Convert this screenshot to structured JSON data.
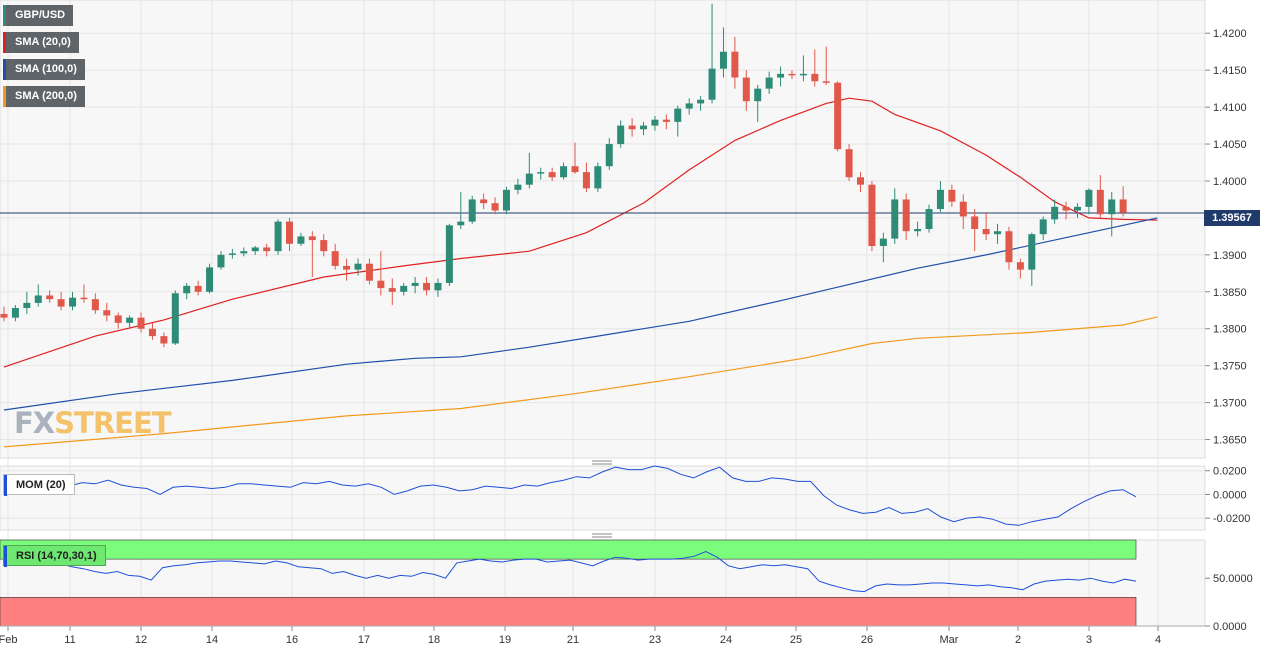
{
  "legend": {
    "symbol": "GBP/USD",
    "sma20": "SMA (20,0)",
    "sma100": "SMA (100,0)",
    "sma200": "SMA (200,0)",
    "mom": "MOM (20)",
    "rsi": "RSI (14,70,30,1)"
  },
  "colors": {
    "up": "#2e8b78",
    "down": "#e0584a",
    "sma20": "#e02020",
    "sma100": "#1f4fa8",
    "sma200": "#f39a1e",
    "indicator": "#1f4fd8",
    "rsi_overbought": "#7cfc7c",
    "rsi_oversold": "#ff8080",
    "last_price_line": "#1f3a6b"
  },
  "last_price": "1.39567",
  "logo": {
    "part1": "FX",
    "part2": "STREET"
  },
  "chart_data": [
    {
      "type": "candlestick",
      "title": "GBP/USD",
      "ylim": [
        1.3625,
        1.4245
      ],
      "y_ticks": [
        "1.4200",
        "1.4150",
        "1.4100",
        "1.4050",
        "1.4000",
        "1.3950",
        "1.3900",
        "1.3850",
        "1.3800",
        "1.3750",
        "1.3700",
        "1.3650"
      ],
      "x_ticks": [
        "Feb",
        "11",
        "12",
        "14",
        "16",
        "17",
        "18",
        "19",
        "21",
        "23",
        "24",
        "25",
        "26",
        "Mar",
        "2",
        "3",
        "4"
      ],
      "candles": [
        [
          1.382,
          1.383,
          1.381,
          1.3815
        ],
        [
          1.3815,
          1.3832,
          1.381,
          1.3828
        ],
        [
          1.3828,
          1.385,
          1.382,
          1.3835
        ],
        [
          1.3835,
          1.386,
          1.383,
          1.3845
        ],
        [
          1.3845,
          1.3852,
          1.3835,
          1.384
        ],
        [
          1.384,
          1.385,
          1.3825,
          1.383
        ],
        [
          1.383,
          1.385,
          1.3825,
          1.3842
        ],
        [
          1.3842,
          1.386,
          1.3835,
          1.384
        ],
        [
          1.384,
          1.3848,
          1.382,
          1.3825
        ],
        [
          1.3825,
          1.3835,
          1.381,
          1.3818
        ],
        [
          1.3818,
          1.3822,
          1.38,
          1.3808
        ],
        [
          1.3808,
          1.3818,
          1.3802,
          1.3815
        ],
        [
          1.3815,
          1.3822,
          1.3795,
          1.38
        ],
        [
          1.38,
          1.3808,
          1.3785,
          1.379
        ],
        [
          1.379,
          1.3795,
          1.3775,
          1.378
        ],
        [
          1.378,
          1.3852,
          1.3778,
          1.3848
        ],
        [
          1.3848,
          1.3862,
          1.384,
          1.3858
        ],
        [
          1.3858,
          1.3865,
          1.3845,
          1.385
        ],
        [
          1.385,
          1.3888,
          1.3848,
          1.3883
        ],
        [
          1.3883,
          1.3905,
          1.388,
          1.39
        ],
        [
          1.39,
          1.3908,
          1.3895,
          1.3902
        ],
        [
          1.3902,
          1.391,
          1.3898,
          1.3905
        ],
        [
          1.3905,
          1.3912,
          1.39,
          1.391
        ],
        [
          1.391,
          1.3915,
          1.3898,
          1.3905
        ],
        [
          1.3905,
          1.3948,
          1.39,
          1.3945
        ],
        [
          1.3945,
          1.395,
          1.3905,
          1.3915
        ],
        [
          1.3915,
          1.393,
          1.3912,
          1.3925
        ],
        [
          1.3925,
          1.3932,
          1.387,
          1.392
        ],
        [
          1.392,
          1.3928,
          1.3898,
          1.3905
        ],
        [
          1.3905,
          1.3915,
          1.388,
          1.3885
        ],
        [
          1.3885,
          1.3895,
          1.3865,
          1.388
        ],
        [
          1.388,
          1.3895,
          1.3872,
          1.3888
        ],
        [
          1.3888,
          1.3895,
          1.386,
          1.3865
        ],
        [
          1.3865,
          1.3905,
          1.3845,
          1.3855
        ],
        [
          1.3855,
          1.3868,
          1.3832,
          1.385
        ],
        [
          1.385,
          1.3862,
          1.3845,
          1.3858
        ],
        [
          1.3858,
          1.387,
          1.3848,
          1.3862
        ],
        [
          1.3862,
          1.387,
          1.3845,
          1.3852
        ],
        [
          1.3852,
          1.3868,
          1.3843,
          1.3862
        ],
        [
          1.3862,
          1.3942,
          1.3858,
          1.394
        ],
        [
          1.394,
          1.3985,
          1.3935,
          1.3945
        ],
        [
          1.3945,
          1.398,
          1.3942,
          1.3975
        ],
        [
          1.3975,
          1.3983,
          1.3962,
          1.397
        ],
        [
          1.397,
          1.3978,
          1.3955,
          1.396
        ],
        [
          1.396,
          1.3992,
          1.3955,
          1.3988
        ],
        [
          1.3988,
          1.4003,
          1.3982,
          1.3995
        ],
        [
          1.3995,
          1.4038,
          1.399,
          1.401
        ],
        [
          1.401,
          1.4018,
          1.4002,
          1.4012
        ],
        [
          1.4012,
          1.4018,
          1.4,
          1.4005
        ],
        [
          1.4005,
          1.4025,
          1.4002,
          1.402
        ],
        [
          1.402,
          1.4052,
          1.401,
          1.4012
        ],
        [
          1.4012,
          1.4025,
          1.3985,
          1.399
        ],
        [
          1.399,
          1.4025,
          1.3985,
          1.402
        ],
        [
          1.402,
          1.4058,
          1.4015,
          1.405
        ],
        [
          1.405,
          1.4082,
          1.4045,
          1.4075
        ],
        [
          1.4075,
          1.4085,
          1.406,
          1.407
        ],
        [
          1.407,
          1.408,
          1.4062,
          1.4075
        ],
        [
          1.4075,
          1.4088,
          1.4068,
          1.4083
        ],
        [
          1.4083,
          1.409,
          1.407,
          1.408
        ],
        [
          1.408,
          1.4102,
          1.406,
          1.4098
        ],
        [
          1.4098,
          1.4112,
          1.409,
          1.4105
        ],
        [
          1.4105,
          1.4115,
          1.4095,
          1.411
        ],
        [
          1.411,
          1.424,
          1.4105,
          1.4152
        ],
        [
          1.4152,
          1.4208,
          1.414,
          1.4175
        ],
        [
          1.4175,
          1.4195,
          1.4125,
          1.414
        ],
        [
          1.414,
          1.415,
          1.4095,
          1.4108
        ],
        [
          1.4108,
          1.413,
          1.408,
          1.4125
        ],
        [
          1.4125,
          1.4148,
          1.4118,
          1.414
        ],
        [
          1.414,
          1.4155,
          1.4128,
          1.4145
        ],
        [
          1.4145,
          1.415,
          1.4138,
          1.4143
        ],
        [
          1.4143,
          1.417,
          1.4135,
          1.4145
        ],
        [
          1.4145,
          1.4178,
          1.4128,
          1.4135
        ],
        [
          1.4135,
          1.4182,
          1.413,
          1.4133
        ],
        [
          1.4133,
          1.4135,
          1.404,
          1.4043
        ],
        [
          1.4043,
          1.405,
          1.4,
          1.4005
        ],
        [
          1.4005,
          1.4012,
          1.3985,
          1.3995
        ],
        [
          1.3995,
          1.4,
          1.3905,
          1.3912
        ],
        [
          1.3912,
          1.393,
          1.389,
          1.3922
        ],
        [
          1.3922,
          1.399,
          1.3915,
          1.3975
        ],
        [
          1.3975,
          1.3983,
          1.392,
          1.3932
        ],
        [
          1.3932,
          1.3945,
          1.3925,
          1.3935
        ],
        [
          1.3935,
          1.3968,
          1.393,
          1.3962
        ],
        [
          1.3962,
          1.4,
          1.3958,
          1.3988
        ],
        [
          1.3988,
          1.3995,
          1.3965,
          1.3972
        ],
        [
          1.3972,
          1.3982,
          1.3935,
          1.3952
        ],
        [
          1.3952,
          1.3962,
          1.3905,
          1.3935
        ],
        [
          1.3935,
          1.3958,
          1.392,
          1.3928
        ],
        [
          1.3928,
          1.3942,
          1.3915,
          1.3932
        ],
        [
          1.3932,
          1.3938,
          1.388,
          1.389
        ],
        [
          1.389,
          1.3895,
          1.3868,
          1.388
        ],
        [
          1.388,
          1.393,
          1.3858,
          1.3928
        ],
        [
          1.3928,
          1.3952,
          1.392,
          1.3948
        ],
        [
          1.3948,
          1.3975,
          1.3942,
          1.3965
        ],
        [
          1.3965,
          1.3972,
          1.3948,
          1.396
        ],
        [
          1.396,
          1.397,
          1.395,
          1.3965
        ],
        [
          1.3965,
          1.399,
          1.3955,
          1.3988
        ],
        [
          1.3988,
          1.4008,
          1.3948,
          1.3955
        ],
        [
          1.3955,
          1.3985,
          1.3925,
          1.3975
        ],
        [
          1.3975,
          1.3993,
          1.3952,
          1.3957
        ]
      ],
      "sma": [
        {
          "name": "SMA (20,0)",
          "values": [
            [
              0,
              1.3748
            ],
            [
              8,
              1.379
            ],
            [
              14,
              1.3812
            ],
            [
              20,
              1.384
            ],
            [
              28,
              1.387
            ],
            [
              35,
              1.3885
            ],
            [
              40,
              1.3895
            ],
            [
              46,
              1.3905
            ],
            [
              51,
              1.393
            ],
            [
              56,
              1.397
            ],
            [
              60,
              1.4015
            ],
            [
              64,
              1.4055
            ],
            [
              68,
              1.4082
            ],
            [
              72,
              1.4105
            ],
            [
              74,
              1.4112
            ],
            [
              76,
              1.4108
            ],
            [
              78,
              1.409
            ],
            [
              82,
              1.4068
            ],
            [
              86,
              1.4035
            ],
            [
              89,
              1.4005
            ],
            [
              92,
              1.3972
            ],
            [
              95,
              1.395
            ],
            [
              98,
              1.3948
            ],
            [
              101,
              1.3947
            ]
          ]
        },
        {
          "name": "SMA (100,0)",
          "values": [
            [
              0,
              1.369
            ],
            [
              10,
              1.3712
            ],
            [
              20,
              1.373
            ],
            [
              30,
              1.3752
            ],
            [
              36,
              1.376
            ],
            [
              40,
              1.3762
            ],
            [
              46,
              1.3775
            ],
            [
              52,
              1.379
            ],
            [
              60,
              1.381
            ],
            [
              68,
              1.3838
            ],
            [
              74,
              1.386
            ],
            [
              80,
              1.3882
            ],
            [
              86,
              1.39
            ],
            [
              92,
              1.392
            ],
            [
              98,
              1.394
            ],
            [
              101,
              1.395
            ]
          ]
        },
        {
          "name": "SMA (200,0)",
          "values": [
            [
              0,
              1.364
            ],
            [
              14,
              1.3658
            ],
            [
              30,
              1.3682
            ],
            [
              40,
              1.3692
            ],
            [
              50,
              1.3712
            ],
            [
              60,
              1.3735
            ],
            [
              70,
              1.376
            ],
            [
              76,
              1.378
            ],
            [
              80,
              1.3787
            ],
            [
              90,
              1.3795
            ],
            [
              98,
              1.3805
            ],
            [
              101,
              1.3816
            ]
          ]
        }
      ]
    },
    {
      "type": "line",
      "title": "MOM (20)",
      "ylim": [
        -0.03,
        0.024
      ],
      "y_ticks": [
        "0.0200",
        "0.0000",
        "-0.0200"
      ],
      "series": [
        {
          "name": "MOM (20)",
          "values": [
            0.011,
            0.01,
            0.009,
            0.01,
            0.008,
            0.007,
            0.01,
            0.009,
            0.012,
            0.008,
            0.006,
            0.005,
            0.0,
            0.006,
            0.007,
            0.006,
            0.005,
            0.006,
            0.009,
            0.009,
            0.008,
            0.007,
            0.006,
            0.01,
            0.009,
            0.011,
            0.008,
            0.007,
            0.009,
            0.006,
            0.0,
            0.003,
            0.007,
            0.008,
            0.006,
            0.003,
            0.004,
            0.007,
            0.006,
            0.005,
            0.008,
            0.007,
            0.01,
            0.012,
            0.015,
            0.014,
            0.019,
            0.023,
            0.021,
            0.021,
            0.024,
            0.022,
            0.017,
            0.014,
            0.019,
            0.023,
            0.014,
            0.011,
            0.011,
            0.014,
            0.013,
            0.011,
            0.011,
            -0.001,
            -0.009,
            -0.013,
            -0.016,
            -0.015,
            -0.011,
            -0.016,
            -0.015,
            -0.012,
            -0.019,
            -0.023,
            -0.02,
            -0.019,
            -0.021,
            -0.025,
            -0.026,
            -0.023,
            -0.021,
            -0.019,
            -0.012,
            -0.006,
            -0.001,
            0.003,
            0.004,
            -0.002
          ]
        }
      ]
    },
    {
      "type": "line",
      "title": "RSI (14,70,30,1)",
      "ylim": [
        0,
        90
      ],
      "y_ticks": [
        "50.0000",
        "0.0000"
      ],
      "series": [
        {
          "name": "RSI (14,70,30,1)",
          "values": [
            67,
            68,
            67,
            66,
            67,
            65,
            62,
            60,
            57,
            55,
            57,
            53,
            52,
            48,
            61,
            63,
            64,
            66,
            67,
            68,
            68,
            67,
            66,
            65,
            68,
            66,
            62,
            61,
            60,
            55,
            57,
            53,
            50,
            53,
            50,
            53,
            52,
            56,
            54,
            50,
            66,
            68,
            70,
            68,
            67,
            69,
            70,
            70,
            67,
            68,
            69,
            66,
            63,
            68,
            72,
            71,
            69,
            70,
            70,
            70,
            71,
            73,
            78,
            72,
            63,
            60,
            62,
            64,
            63,
            64,
            62,
            60,
            47,
            43,
            40,
            37,
            36,
            42,
            44,
            43,
            43,
            44,
            45,
            45,
            44,
            43,
            42,
            43,
            41,
            40,
            38,
            44,
            47,
            48,
            49,
            48,
            50,
            47,
            45,
            49,
            47
          ]
        }
      ]
    }
  ]
}
